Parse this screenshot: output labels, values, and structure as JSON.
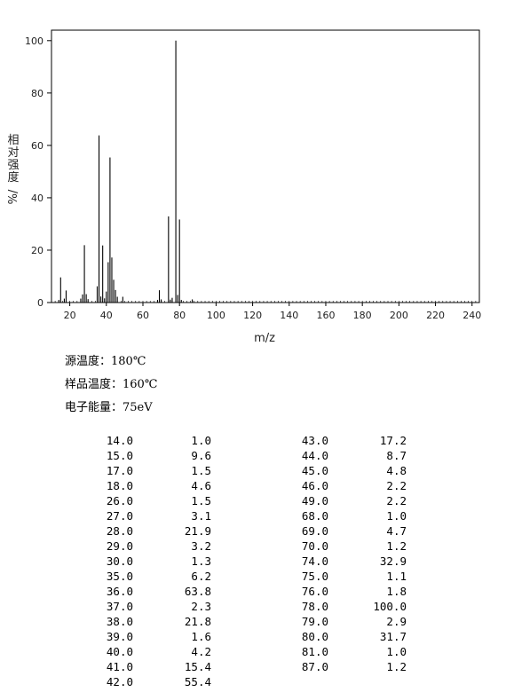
{
  "chart_data": {
    "type": "bar",
    "xlabel": "m/z",
    "ylabel": "相对强度 %/",
    "xlim": [
      10,
      244
    ],
    "ylim": [
      0,
      104
    ],
    "x_ticks": [
      20,
      40,
      60,
      80,
      100,
      120,
      140,
      160,
      180,
      200,
      220,
      240
    ],
    "y_ticks": [
      0,
      20,
      40,
      60,
      80,
      100
    ],
    "x": [
      14,
      15,
      17,
      18,
      26,
      27,
      28,
      29,
      30,
      35,
      36,
      37,
      38,
      39,
      40,
      41,
      42,
      43,
      44,
      45,
      46,
      49,
      68,
      69,
      70,
      74,
      75,
      76,
      78,
      79,
      80,
      81,
      87
    ],
    "values": [
      1.0,
      9.6,
      1.5,
      4.6,
      1.5,
      3.1,
      21.9,
      3.2,
      1.3,
      6.2,
      63.8,
      2.3,
      21.8,
      1.6,
      4.2,
      15.4,
      55.4,
      17.2,
      8.7,
      4.8,
      2.2,
      2.2,
      1.0,
      4.7,
      1.2,
      32.9,
      1.1,
      1.8,
      100.0,
      2.9,
      31.7,
      1.0,
      1.2
    ]
  },
  "conditions": [
    "源温度：180℃",
    "样品温度：160℃",
    "电子能量：75eV"
  ],
  "peaks_left": [
    {
      "mz": "14.0",
      "intensity": "1.0"
    },
    {
      "mz": "15.0",
      "intensity": "9.6"
    },
    {
      "mz": "17.0",
      "intensity": "1.5"
    },
    {
      "mz": "18.0",
      "intensity": "4.6"
    },
    {
      "mz": "26.0",
      "intensity": "1.5"
    },
    {
      "mz": "27.0",
      "intensity": "3.1"
    },
    {
      "mz": "28.0",
      "intensity": "21.9"
    },
    {
      "mz": "29.0",
      "intensity": "3.2"
    },
    {
      "mz": "30.0",
      "intensity": "1.3"
    },
    {
      "mz": "35.0",
      "intensity": "6.2"
    },
    {
      "mz": "36.0",
      "intensity": "63.8"
    },
    {
      "mz": "37.0",
      "intensity": "2.3"
    },
    {
      "mz": "38.0",
      "intensity": "21.8"
    },
    {
      "mz": "39.0",
      "intensity": "1.6"
    },
    {
      "mz": "40.0",
      "intensity": "4.2"
    },
    {
      "mz": "41.0",
      "intensity": "15.4"
    },
    {
      "mz": "42.0",
      "intensity": "55.4"
    }
  ],
  "peaks_right": [
    {
      "mz": "43.0",
      "intensity": "17.2"
    },
    {
      "mz": "44.0",
      "intensity": "8.7"
    },
    {
      "mz": "45.0",
      "intensity": "4.8"
    },
    {
      "mz": "46.0",
      "intensity": "2.2"
    },
    {
      "mz": "49.0",
      "intensity": "2.2"
    },
    {
      "mz": "68.0",
      "intensity": "1.0"
    },
    {
      "mz": "69.0",
      "intensity": "4.7"
    },
    {
      "mz": "70.0",
      "intensity": "1.2"
    },
    {
      "mz": "74.0",
      "intensity": "32.9"
    },
    {
      "mz": "75.0",
      "intensity": "1.1"
    },
    {
      "mz": "76.0",
      "intensity": "1.8"
    },
    {
      "mz": "78.0",
      "intensity": "100.0"
    },
    {
      "mz": "79.0",
      "intensity": "2.9"
    },
    {
      "mz": "80.0",
      "intensity": "31.7"
    },
    {
      "mz": "81.0",
      "intensity": "1.0"
    },
    {
      "mz": "87.0",
      "intensity": "1.2"
    }
  ]
}
